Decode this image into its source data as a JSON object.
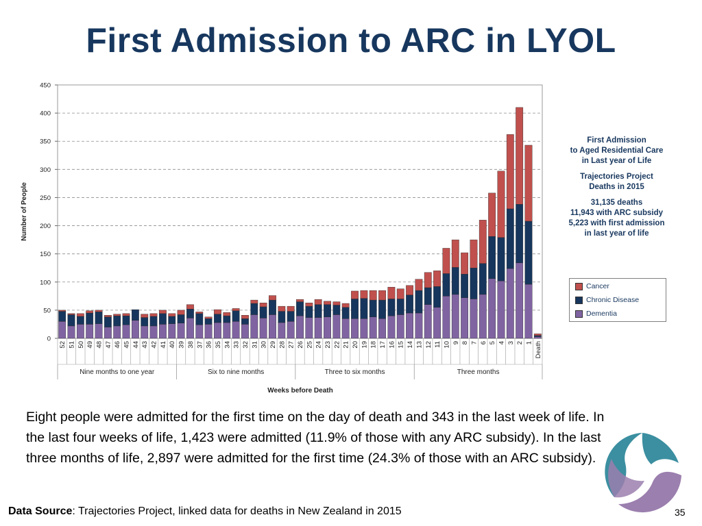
{
  "slide": {
    "title": "First Admission to ARC in LYOL",
    "caption": "Eight people were admitted for the first time on the day of death and 343 in the last week of life. In the last four weeks of life, 1,423 were admitted (11.9% of those with any ARC subsidy). In the last three months of life, 2,897 were admitted for the first time (24.3% of those with an ARC subsidy).",
    "source_label": "Data Source",
    "source_text": ": Trajectories Project, linked data for deaths in New Zealand in 2015",
    "page_number": "35"
  },
  "info_box": {
    "line1": "First Admission",
    "line2": "to Aged Residential Care",
    "line3": "in Last year of Life",
    "line4": "Trajectories Project",
    "line5": "Deaths in 2015",
    "line6": "31,135 deaths",
    "line7": "11,943 with ARC  subsidy",
    "line8": "5,223 with first admission",
    "line9": "in last year of life"
  },
  "colors": {
    "title": "#17375e",
    "dementia": "#8064a2",
    "chronic": "#17365d",
    "cancer": "#c0504d",
    "logo_teal": "#3b8fa0",
    "logo_purple": "#9b7fae"
  },
  "chart_data": {
    "type": "bar",
    "stacked": true,
    "ylabel": "Number of People",
    "xlabel": "Weeks before Death",
    "ylim": [
      0,
      450
    ],
    "yticks": [
      0,
      50,
      100,
      150,
      200,
      250,
      300,
      350,
      400,
      450
    ],
    "grid": true,
    "legend_position": "right",
    "categories": [
      "52",
      "51",
      "50",
      "49",
      "48",
      "47",
      "46",
      "45",
      "44",
      "43",
      "42",
      "41",
      "40",
      "39",
      "38",
      "37",
      "36",
      "35",
      "34",
      "33",
      "32",
      "31",
      "30",
      "29",
      "28",
      "27",
      "26",
      "25",
      "24",
      "23",
      "22",
      "21",
      "20",
      "19",
      "18",
      "17",
      "16",
      "15",
      "14",
      "13",
      "12",
      "11",
      "10",
      "9",
      "8",
      "7",
      "6",
      "5",
      "4",
      "3",
      "2",
      "1",
      "Death"
    ],
    "series": [
      {
        "name": "Dementia",
        "values": [
          30,
          22,
          25,
          25,
          26,
          20,
          22,
          24,
          32,
          22,
          22,
          25,
          26,
          27,
          36,
          24,
          25,
          28,
          28,
          30,
          25,
          42,
          36,
          42,
          28,
          30,
          40,
          37,
          37,
          38,
          42,
          35,
          35,
          35,
          38,
          35,
          40,
          42,
          45,
          45,
          60,
          55,
          75,
          78,
          72,
          70,
          78,
          106,
          102,
          124,
          134,
          96,
          3
        ]
      },
      {
        "name": "Chronic Disease",
        "values": [
          18,
          20,
          14,
          20,
          21,
          18,
          18,
          16,
          19,
          15,
          17,
          19,
          13,
          15,
          16,
          20,
          10,
          15,
          12,
          19,
          10,
          20,
          20,
          26,
          20,
          18,
          25,
          20,
          23,
          22,
          17,
          20,
          35,
          36,
          30,
          33,
          30,
          28,
          32,
          40,
          30,
          37,
          40,
          48,
          42,
          55,
          55,
          75,
          77,
          106,
          104,
          112,
          2
        ]
      },
      {
        "name": "Cancer",
        "values": [
          2,
          2,
          5,
          4,
          3,
          3,
          3,
          4,
          0,
          6,
          5,
          6,
          5,
          8,
          8,
          3,
          3,
          8,
          6,
          4,
          6,
          6,
          7,
          8,
          9,
          9,
          4,
          6,
          9,
          6,
          6,
          7,
          14,
          14,
          17,
          17,
          21,
          18,
          17,
          20,
          27,
          28,
          45,
          49,
          38,
          50,
          77,
          77,
          118,
          132,
          172,
          135,
          3
        ]
      }
    ],
    "groups": [
      {
        "label": "Nine months to one year",
        "start": 0,
        "end": 12
      },
      {
        "label": "Six to nine months",
        "start": 13,
        "end": 25
      },
      {
        "label": "Three to six months",
        "start": 26,
        "end": 38
      },
      {
        "label": "Three months",
        "start": 39,
        "end": 52
      }
    ]
  }
}
